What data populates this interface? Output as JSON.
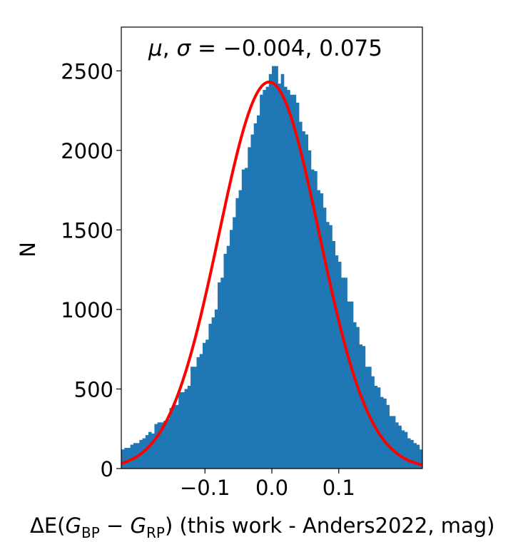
{
  "chart_data": {
    "type": "bar",
    "title": "",
    "annotation": {
      "mu_label": "μ",
      "sigma_label": "σ",
      "mu": "−0.004",
      "sigma": "0.075"
    },
    "xlabel": {
      "prefix": "ΔE(",
      "g_symbol": "G",
      "bp_sub": "BP",
      "minus": " − ",
      "rp_sub": "RP",
      "suffix": ") (this work - Anders2022, mag)"
    },
    "ylabel": "N",
    "xlim": [
      -0.225,
      0.225
    ],
    "ylim": [
      0,
      2775
    ],
    "x_ticks": [
      -0.1,
      0.0,
      0.1
    ],
    "x_tick_labels": [
      "−0.1",
      "0.0",
      "0.1"
    ],
    "y_ticks": [
      0,
      500,
      1000,
      1500,
      2000,
      2500
    ],
    "y_tick_labels": [
      "0",
      "500",
      "1000",
      "1500",
      "2000",
      "2500"
    ],
    "grid": false,
    "histogram": {
      "color": "#1f77b4",
      "bin_width": 0.0045,
      "x_start": -0.225,
      "counts": [
        120,
        130,
        130,
        150,
        160,
        160,
        180,
        190,
        210,
        230,
        220,
        280,
        290,
        290,
        300,
        310,
        380,
        400,
        400,
        480,
        480,
        500,
        520,
        640,
        640,
        700,
        720,
        790,
        810,
        910,
        950,
        1000,
        1170,
        1200,
        1350,
        1400,
        1500,
        1580,
        1700,
        1750,
        1880,
        1890,
        2020,
        2100,
        2170,
        2220,
        2350,
        2380,
        2400,
        2480,
        2530,
        2530,
        2420,
        2480,
        2400,
        2380,
        2350,
        2350,
        2300,
        2180,
        2120,
        2100,
        2000,
        1880,
        1870,
        1750,
        1730,
        1640,
        1550,
        1530,
        1430,
        1340,
        1300,
        1200,
        1200,
        1050,
        1050,
        920,
        890,
        780,
        770,
        640,
        640,
        580,
        520,
        510,
        450,
        440,
        400,
        330,
        330,
        290,
        270,
        240,
        230,
        190,
        180,
        160,
        150,
        120
      ]
    },
    "fit": {
      "color": "#ff0000",
      "amplitude": 2430,
      "mu": -0.004,
      "sigma": 0.075
    }
  }
}
